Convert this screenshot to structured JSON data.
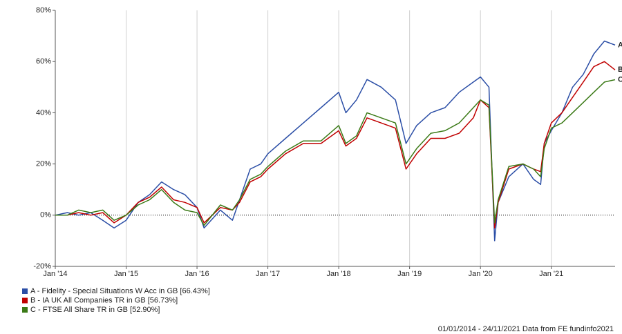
{
  "chart_data": {
    "type": "line",
    "x": [
      2014,
      2014.17,
      2014.33,
      2014.5,
      2014.67,
      2014.83,
      2015,
      2015.17,
      2015.33,
      2015.5,
      2015.67,
      2015.83,
      2016,
      2016.1,
      2016.33,
      2016.5,
      2016.6,
      2016.75,
      2016.9,
      2017,
      2017.25,
      2017.5,
      2017.75,
      2018,
      2018.1,
      2018.25,
      2018.4,
      2018.6,
      2018.8,
      2018.95,
      2019.1,
      2019.3,
      2019.5,
      2019.7,
      2019.9,
      2020,
      2020.12,
      2020.2,
      2020.25,
      2020.4,
      2020.6,
      2020.75,
      2020.85,
      2020.9,
      2021,
      2021.15,
      2021.3,
      2021.45,
      2021.6,
      2021.75,
      2021.9
    ],
    "series": [
      {
        "name": "A - Fidelity - Special Situations W Acc in GB [66.43%]",
        "label": "A",
        "color": "#2b4ea6",
        "values": [
          0,
          1,
          0,
          1,
          -2,
          -5,
          -2,
          5,
          8,
          13,
          10,
          8,
          3,
          -5,
          2,
          -2,
          6,
          18,
          20,
          24,
          30,
          36,
          42,
          48,
          40,
          45,
          53,
          50,
          45,
          28,
          35,
          40,
          42,
          48,
          52,
          54,
          50,
          -10,
          5,
          15,
          20,
          14,
          12,
          28,
          33,
          40,
          50,
          55,
          63,
          68,
          66.43
        ]
      },
      {
        "name": "B - IA UK All Companies TR in GB [56.73%]",
        "label": "B",
        "color": "#c00000",
        "values": [
          0,
          0,
          1,
          0,
          1,
          -3,
          0,
          5,
          7,
          11,
          6,
          5,
          3,
          -3,
          3,
          2,
          5,
          13,
          15,
          18,
          24,
          28,
          28,
          33,
          27,
          30,
          38,
          36,
          34,
          18,
          24,
          30,
          30,
          32,
          38,
          45,
          42,
          -5,
          5,
          18,
          20,
          18,
          17,
          28,
          36,
          40,
          46,
          52,
          58,
          60,
          56.73
        ]
      },
      {
        "name": "C - FTSE All Share TR in GB [52.90%]",
        "label": "C",
        "color": "#3b7a17",
        "values": [
          0,
          0,
          2,
          1,
          2,
          -2,
          0,
          4,
          6,
          10,
          5,
          2,
          1,
          -4,
          4,
          2,
          6,
          14,
          16,
          19,
          25,
          29,
          29,
          35,
          28,
          31,
          40,
          38,
          36,
          20,
          26,
          32,
          33,
          36,
          42,
          45,
          43,
          -3,
          6,
          19,
          20,
          18,
          15,
          26,
          34,
          36,
          40,
          44,
          48,
          52,
          52.9
        ]
      }
    ],
    "xlim": [
      2014,
      2021.9
    ],
    "xticks": [
      {
        "value": 2014,
        "label": "Jan '14"
      },
      {
        "value": 2015,
        "label": "Jan '15"
      },
      {
        "value": 2016,
        "label": "Jan '16"
      },
      {
        "value": 2017,
        "label": "Jan '17"
      },
      {
        "value": 2018,
        "label": "Jan '18"
      },
      {
        "value": 2019,
        "label": "Jan '19"
      },
      {
        "value": 2020,
        "label": "Jan '20"
      },
      {
        "value": 2021,
        "label": "Jan '21"
      }
    ],
    "ylim": [
      -20,
      80
    ],
    "yticks": [
      {
        "value": -20,
        "label": "-20%"
      },
      {
        "value": 0,
        "label": "0%"
      },
      {
        "value": 20,
        "label": "20%"
      },
      {
        "value": 40,
        "label": "40%"
      },
      {
        "value": 60,
        "label": "60%"
      },
      {
        "value": 80,
        "label": "80%"
      }
    ],
    "grid": true,
    "footnote": "01/01/2014 - 24/11/2021 Data from FE fundinfo2021"
  }
}
